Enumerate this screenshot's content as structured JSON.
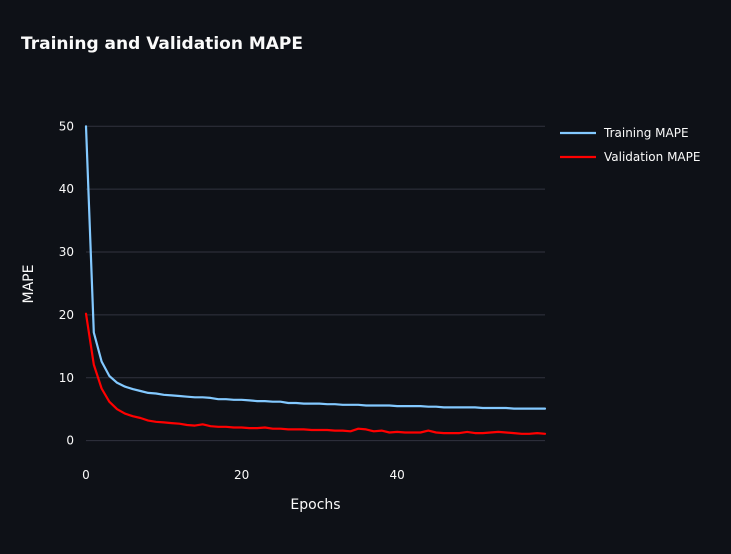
{
  "chart_data": {
    "type": "line",
    "title": "Training and Validation MAPE",
    "xlabel": "Epochs",
    "ylabel": "MAPE",
    "xlim": [
      0,
      59
    ],
    "ylim": [
      -1.8,
      51
    ],
    "xticks": [
      0,
      20,
      40
    ],
    "yticks": [
      0,
      10,
      20,
      30,
      40,
      50
    ],
    "grid": true,
    "legend_position": "top-right",
    "background": "#0e1117",
    "gridline_color": "#31333f",
    "text_color": "#fafafa",
    "x": [
      0,
      1,
      2,
      3,
      4,
      5,
      6,
      7,
      8,
      9,
      10,
      11,
      12,
      13,
      14,
      15,
      16,
      17,
      18,
      19,
      20,
      21,
      22,
      23,
      24,
      25,
      26,
      27,
      28,
      29,
      30,
      31,
      32,
      33,
      34,
      35,
      36,
      37,
      38,
      39,
      40,
      41,
      42,
      43,
      44,
      45,
      46,
      47,
      48,
      49,
      50,
      51,
      52,
      53,
      54,
      55,
      56,
      57,
      58,
      59
    ],
    "series": [
      {
        "name": "Training MAPE",
        "color": "#83c9ff",
        "values": [
          50,
          17.2,
          12.6,
          10.3,
          9.2,
          8.6,
          8.2,
          7.9,
          7.6,
          7.5,
          7.3,
          7.2,
          7.1,
          7.0,
          6.9,
          6.9,
          6.8,
          6.6,
          6.6,
          6.5,
          6.5,
          6.4,
          6.3,
          6.3,
          6.2,
          6.2,
          6.0,
          6.0,
          5.9,
          5.9,
          5.9,
          5.8,
          5.8,
          5.7,
          5.7,
          5.7,
          5.6,
          5.6,
          5.6,
          5.6,
          5.5,
          5.5,
          5.5,
          5.5,
          5.4,
          5.4,
          5.3,
          5.3,
          5.3,
          5.3,
          5.3,
          5.2,
          5.2,
          5.2,
          5.2,
          5.1,
          5.1,
          5.1,
          5.1,
          5.1
        ]
      },
      {
        "name": "Validation MAPE",
        "color": "#ff0000",
        "values": [
          20.2,
          12.1,
          8.3,
          6.2,
          5.0,
          4.3,
          3.9,
          3.6,
          3.2,
          3.0,
          2.9,
          2.8,
          2.7,
          2.5,
          2.4,
          2.6,
          2.3,
          2.2,
          2.2,
          2.1,
          2.1,
          2.0,
          2.0,
          2.1,
          1.9,
          1.9,
          1.8,
          1.8,
          1.8,
          1.7,
          1.7,
          1.7,
          1.6,
          1.6,
          1.5,
          1.9,
          1.8,
          1.5,
          1.6,
          1.3,
          1.4,
          1.3,
          1.3,
          1.3,
          1.6,
          1.3,
          1.2,
          1.2,
          1.2,
          1.4,
          1.2,
          1.2,
          1.3,
          1.4,
          1.3,
          1.2,
          1.1,
          1.1,
          1.2,
          1.1
        ]
      }
    ]
  }
}
